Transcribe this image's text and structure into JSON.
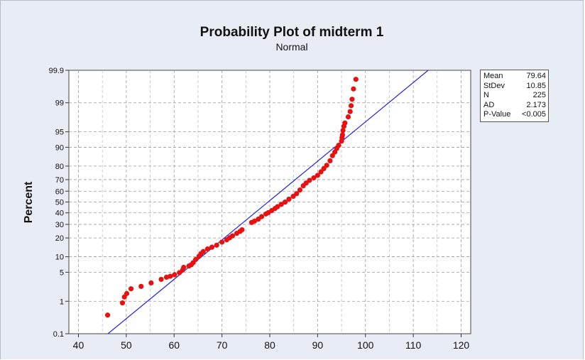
{
  "chart_data": {
    "type": "scatter",
    "title": "Probability Plot of midterm 1",
    "subtitle": "Normal",
    "xlabel": "",
    "ylabel": "Percent",
    "scale": "normal-probability",
    "xlim": [
      38,
      122
    ],
    "ylim": [
      0.1,
      99.9
    ],
    "x_ticks": [
      40,
      50,
      60,
      70,
      80,
      90,
      100,
      110,
      120
    ],
    "x_tick_labels": [
      "40",
      "50",
      "60",
      "70",
      "80",
      "90",
      "100",
      "110",
      "120"
    ],
    "y_ticks": [
      0.1,
      1,
      5,
      10,
      20,
      30,
      40,
      50,
      60,
      70,
      80,
      90,
      95,
      99,
      99.9
    ],
    "y_tick_labels": [
      "0.1",
      "1",
      "5",
      "10",
      "20",
      "30",
      "40",
      "50",
      "60",
      "70",
      "80",
      "90",
      "95",
      "99",
      "99.9"
    ],
    "grid": true,
    "fit_line": {
      "mean": 79.64,
      "stdev": 10.85,
      "color": "#2020e0"
    },
    "marker_color": "#e81010",
    "points": [
      [
        46.1,
        0.4
      ],
      [
        49.2,
        0.9
      ],
      [
        49.6,
        1.3
      ],
      [
        50.1,
        1.6
      ],
      [
        51.0,
        2.1
      ],
      [
        53.1,
        2.4
      ],
      [
        55.2,
        2.9
      ],
      [
        57.3,
        3.5
      ],
      [
        58.4,
        3.9
      ],
      [
        59.2,
        4.1
      ],
      [
        60.1,
        4.4
      ],
      [
        61.1,
        4.9
      ],
      [
        61.8,
        5.6
      ],
      [
        62.0,
        6.3
      ],
      [
        63.1,
        6.7
      ],
      [
        63.6,
        7.1
      ],
      [
        64.0,
        7.8
      ],
      [
        64.5,
        8.9
      ],
      [
        65.2,
        10.2
      ],
      [
        65.6,
        11.3
      ],
      [
        66.1,
        12.3
      ],
      [
        67.0,
        13.6
      ],
      [
        67.9,
        14.5
      ],
      [
        68.9,
        15.6
      ],
      [
        70.0,
        17.4
      ],
      [
        71.0,
        18.8
      ],
      [
        71.6,
        20.1
      ],
      [
        72.2,
        21.4
      ],
      [
        73.1,
        23.2
      ],
      [
        73.8,
        24.6
      ],
      [
        74.2,
        25.8
      ],
      [
        76.2,
        31.6
      ],
      [
        76.8,
        32.7
      ],
      [
        77.6,
        34.4
      ],
      [
        78.3,
        36.6
      ],
      [
        79.2,
        39.0
      ],
      [
        79.7,
        40.2
      ],
      [
        80.4,
        42.1
      ],
      [
        81.1,
        44.0
      ],
      [
        81.6,
        45.6
      ],
      [
        82.4,
        47.8
      ],
      [
        83.2,
        49.9
      ],
      [
        84.0,
        52.7
      ],
      [
        84.9,
        55.3
      ],
      [
        85.6,
        57.8
      ],
      [
        86.3,
        61.1
      ],
      [
        87.0,
        64.8
      ],
      [
        87.6,
        67.2
      ],
      [
        88.3,
        69.4
      ],
      [
        89.2,
        71.4
      ],
      [
        90.0,
        73.4
      ],
      [
        90.7,
        76.0
      ],
      [
        91.3,
        78.3
      ],
      [
        91.9,
        80.5
      ],
      [
        92.6,
        83.3
      ],
      [
        93.1,
        86.1
      ],
      [
        93.6,
        87.9
      ],
      [
        94.0,
        89.5
      ],
      [
        94.4,
        90.8
      ],
      [
        95.0,
        92.3
      ],
      [
        95.1,
        93.4
      ],
      [
        95.2,
        94.2
      ],
      [
        95.3,
        95.3
      ],
      [
        95.5,
        96.2
      ],
      [
        95.7,
        96.8
      ],
      [
        96.4,
        97.7
      ],
      [
        96.8,
        98.3
      ],
      [
        97.0,
        98.8
      ],
      [
        97.2,
        99.2
      ],
      [
        97.5,
        99.6
      ],
      [
        98.0,
        99.8
      ]
    ]
  },
  "stats": [
    {
      "label": "Mean",
      "value": "79.64"
    },
    {
      "label": "StDev",
      "value": "10.85"
    },
    {
      "label": "N",
      "value": "225"
    },
    {
      "label": "AD",
      "value": "2.173"
    },
    {
      "label": "P-Value",
      "value": "<0.005"
    }
  ]
}
